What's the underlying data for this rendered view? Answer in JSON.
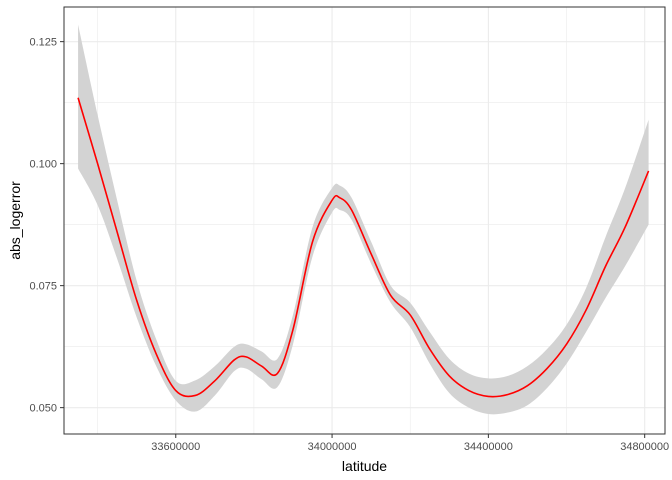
{
  "chart_data": {
    "type": "line",
    "title": "",
    "xlabel": "latitude",
    "ylabel": "abs_logerror",
    "xlim": [
      33314000,
      34852000
    ],
    "ylim": [
      0.0446,
      0.1321
    ],
    "x_ticks": [
      33600000,
      34000000,
      34400000,
      34800000
    ],
    "x_tick_labels": [
      "33600000",
      "34000000",
      "34400000",
      "34800000"
    ],
    "x_minor_ticks": [
      33400000,
      33800000,
      34200000,
      34600000
    ],
    "y_ticks": [
      0.05,
      0.075,
      0.1,
      0.125
    ],
    "y_tick_labels": [
      "0.050",
      "0.075",
      "0.100",
      "0.125"
    ],
    "y_minor_ticks": [
      0.0625,
      0.0875,
      0.1125
    ],
    "grid": true,
    "legend": "none",
    "colors": {
      "line": "#ff0000",
      "ribbon": "#d3d3d3",
      "grid": "#ebebeb",
      "border": "#333333"
    },
    "series": [
      {
        "x": [
          33350000,
          33400000,
          33450000,
          33500000,
          33550000,
          33600000,
          33650000,
          33700000,
          33750000,
          33780000,
          33820000,
          33860000,
          33900000,
          33950000,
          34000000,
          34020000,
          34050000,
          34100000,
          34150000,
          34200000,
          34250000,
          34300000,
          34350000,
          34400000,
          34450000,
          34500000,
          34550000,
          34600000,
          34650000,
          34700000,
          34750000,
          34810000
        ],
        "y": [
          0.1135,
          0.1,
          0.086,
          0.072,
          0.061,
          0.0535,
          0.0525,
          0.0555,
          0.0598,
          0.0604,
          0.0585,
          0.057,
          0.066,
          0.084,
          0.0925,
          0.093,
          0.0905,
          0.0815,
          0.073,
          0.069,
          0.062,
          0.0565,
          0.0535,
          0.0523,
          0.0527,
          0.0545,
          0.058,
          0.063,
          0.07,
          0.079,
          0.087,
          0.0985
        ],
        "lower": [
          0.099,
          0.0915,
          0.0805,
          0.0685,
          0.0585,
          0.0515,
          0.0492,
          0.0525,
          0.0575,
          0.058,
          0.0558,
          0.0542,
          0.063,
          0.081,
          0.09,
          0.0905,
          0.0885,
          0.0795,
          0.0715,
          0.0665,
          0.059,
          0.053,
          0.05,
          0.0487,
          0.049,
          0.0505,
          0.054,
          0.059,
          0.0655,
          0.0725,
          0.079,
          0.0875
        ],
        "upper": [
          0.1285,
          0.11,
          0.0925,
          0.076,
          0.064,
          0.0555,
          0.0556,
          0.0585,
          0.0625,
          0.063,
          0.0615,
          0.06,
          0.069,
          0.087,
          0.095,
          0.0955,
          0.093,
          0.084,
          0.075,
          0.0715,
          0.0655,
          0.06,
          0.057,
          0.056,
          0.0565,
          0.0585,
          0.062,
          0.067,
          0.0745,
          0.085,
          0.095,
          0.109
        ]
      }
    ]
  }
}
